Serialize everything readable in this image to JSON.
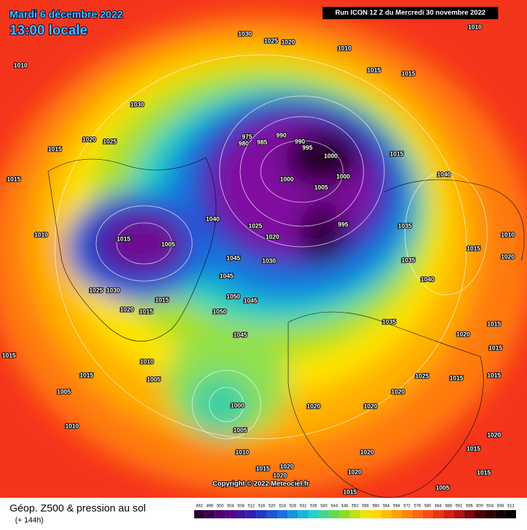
{
  "header": {
    "date": "Mardi 6 décembre 2022",
    "time": "13:00 locale",
    "run": "Run ICON 12 Z du Mercredi 30 novembre 2022"
  },
  "copyright": "Copyright © 2022 Meteociel.fr",
  "footer": {
    "title": "Géop. Z500 & pression au sol",
    "lead": "(+ 144h)"
  },
  "legend": {
    "ticks": [
      492,
      496,
      500,
      504,
      508,
      512,
      516,
      520,
      524,
      528,
      532,
      536,
      540,
      544,
      548,
      552,
      556,
      560,
      564,
      568,
      572,
      576,
      580,
      584,
      588,
      592,
      596,
      600,
      604,
      608,
      612
    ]
  },
  "isobar_labels": [
    "1030",
    "1025",
    "1020",
    "1010",
    "1010",
    "1010",
    "1030",
    "1015",
    "1015",
    "1020",
    "1025",
    "1015",
    "1015",
    "975",
    "980",
    "985",
    "990",
    "990",
    "995",
    "1000",
    "1000",
    "1005",
    "1000",
    "1015",
    "1040",
    "1040",
    "1025",
    "1020",
    "1030",
    "995",
    "1015",
    "1010",
    "1005",
    "1035",
    "1035",
    "1040",
    "1045",
    "1045",
    "1045",
    "1050",
    "1050",
    "1045",
    "1030",
    "1025",
    "1020",
    "1015",
    "1015",
    "1035",
    "1020",
    "1015",
    "1015",
    "1015",
    "1015",
    "1010",
    "1005",
    "1005",
    "1010",
    "1000",
    "1005",
    "1010",
    "1020",
    "1020",
    "1025",
    "1015",
    "1015",
    "1020",
    "1020",
    "1015",
    "1020",
    "1020",
    "1020",
    "1015",
    "1015",
    "1020",
    "1005",
    "1015",
    "1010",
    "1015",
    "1020"
  ]
}
